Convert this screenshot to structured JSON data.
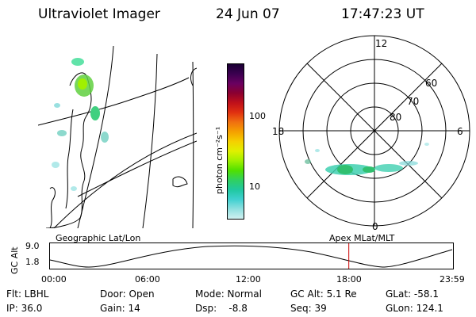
{
  "header": {
    "instrument": "Ultraviolet Imager",
    "date": "24 Jun 07",
    "time": "17:47:23 UT"
  },
  "colorbar": {
    "unit_label": "photon cm⁻²s⁻¹",
    "ticks": [
      "100",
      "10"
    ],
    "colors": [
      "#1a0033",
      "#3b0050",
      "#6a0060",
      "#8b0030",
      "#c0101a",
      "#e03010",
      "#f07010",
      "#f5a000",
      "#f5d000",
      "#e0f000",
      "#a0f000",
      "#50e000",
      "#30d060",
      "#20c8a0",
      "#40d0d0",
      "#90e0e0",
      "#d0f0f0"
    ]
  },
  "left_map": {
    "label": "Geographic Lat/Lon"
  },
  "polar_map": {
    "label": "Apex MLat/MLT",
    "mlt_labels": [
      "12",
      "18",
      "6",
      "0"
    ],
    "lat_labels": [
      "60",
      "70",
      "80"
    ]
  },
  "timeline": {
    "y_axis_label": "GC Alt",
    "y_ticks": [
      "9.0",
      "1.8"
    ],
    "x_ticks": [
      "00:00",
      "06:00",
      "12:00",
      "18:00",
      "23:59"
    ],
    "current_time_marker": "17:47",
    "marker_color": "#cc0000"
  },
  "status": {
    "filter": "Flt: LBHL",
    "door": "Door: Open",
    "mode": "Mode: Normal",
    "gc_alt": "GC Alt: 5.1 Re",
    "glat": "GLat: -58.1",
    "ip": "IP: 36.0",
    "gain": "Gain: 14",
    "dsp": "Dsp:    -8.8",
    "seq": "Seq: 39",
    "glon": "GLon: 124.1"
  }
}
